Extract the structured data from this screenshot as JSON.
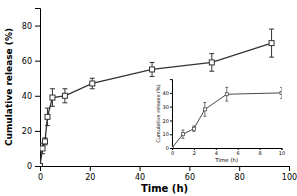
{
  "chart_data": [
    {
      "type": "line",
      "x": [
        0,
        1,
        2,
        3,
        5,
        10,
        21,
        45,
        69,
        93
      ],
      "series": [
        {
          "values": [
            0,
            10,
            14,
            28,
            39,
            40,
            47,
            55,
            59,
            70
          ],
          "yerr": [
            0,
            3,
            2,
            5,
            5,
            4,
            3,
            4,
            5,
            8
          ],
          "color": "#333333",
          "marker": "square"
        }
      ],
      "xlabel": "Time (h)",
      "ylabel": "Cumulative release (%)",
      "xlim": [
        0,
        100
      ],
      "ylim": [
        0,
        90
      ],
      "xticks": [
        0,
        20,
        40,
        60,
        80,
        100
      ],
      "yticks": [
        0,
        20,
        40,
        60,
        80
      ],
      "grid": false
    },
    {
      "type": "line",
      "x": [
        0,
        1,
        2,
        3,
        5,
        10
      ],
      "series": [
        {
          "values": [
            0,
            10,
            14,
            28,
            39,
            40
          ],
          "yerr": [
            0,
            3,
            2,
            5,
            5,
            4
          ],
          "color": "#333333",
          "marker": "square"
        }
      ],
      "xlabel": "Time (h)",
      "ylabel": "Cumulative release (%)",
      "xlim": [
        0,
        10
      ],
      "ylim": [
        0,
        50
      ],
      "xticks": [
        0,
        2,
        4,
        6,
        8,
        10
      ],
      "yticks": [
        0,
        10,
        20,
        30,
        40
      ],
      "grid": false
    }
  ]
}
